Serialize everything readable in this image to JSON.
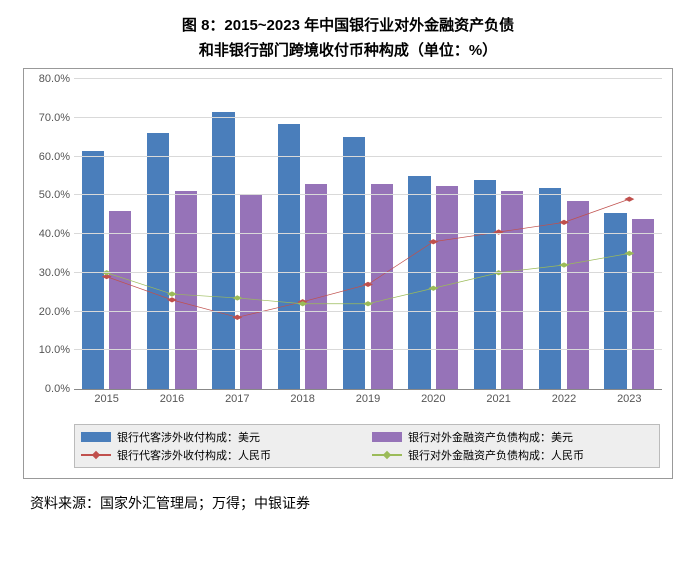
{
  "title_line1": "图 8：2015~2023 年中国银行业对外金融资产负债",
  "title_line2": "和非银行部门跨境收付币种构成（单位：%）",
  "source": "资料来源：国家外汇管理局；万得；中银证券",
  "chart": {
    "type": "bar+line",
    "categories": [
      "2015",
      "2016",
      "2017",
      "2018",
      "2019",
      "2020",
      "2021",
      "2022",
      "2023"
    ],
    "ymax": 80,
    "ymin": 0,
    "ytick_step": 10,
    "ytick_labels": [
      "0.0%",
      "10.0%",
      "20.0%",
      "30.0%",
      "40.0%",
      "50.0%",
      "60.0%",
      "70.0%",
      "80.0%"
    ],
    "grid_color": "#d9d9d9",
    "legend_bg": "#eeeeee",
    "bar_series": [
      {
        "name": "银行代客涉外收付构成：美元",
        "color": "#4a7ebb",
        "values": [
          61.5,
          66.0,
          71.5,
          68.5,
          65.0,
          55.0,
          54.0,
          52.0,
          45.5
        ]
      },
      {
        "name": "银行对外金融资产负债构成：美元",
        "color": "#9673b8",
        "values": [
          46.0,
          51.0,
          50.0,
          53.0,
          53.0,
          52.5,
          51.0,
          48.5,
          44.0
        ]
      }
    ],
    "line_series": [
      {
        "name": "银行代客涉外收付构成：人民币",
        "color": "#c0504d",
        "marker": "diamond",
        "values": [
          29.0,
          23.0,
          18.5,
          22.5,
          27.0,
          38.0,
          40.5,
          43.0,
          49.0
        ]
      },
      {
        "name": "银行对外金融资产负债构成：人民币",
        "color": "#9bbb59",
        "marker": "diamond",
        "values": [
          30.0,
          24.5,
          23.5,
          22.0,
          22.0,
          26.0,
          30.0,
          32.0,
          35.0
        ]
      }
    ]
  }
}
